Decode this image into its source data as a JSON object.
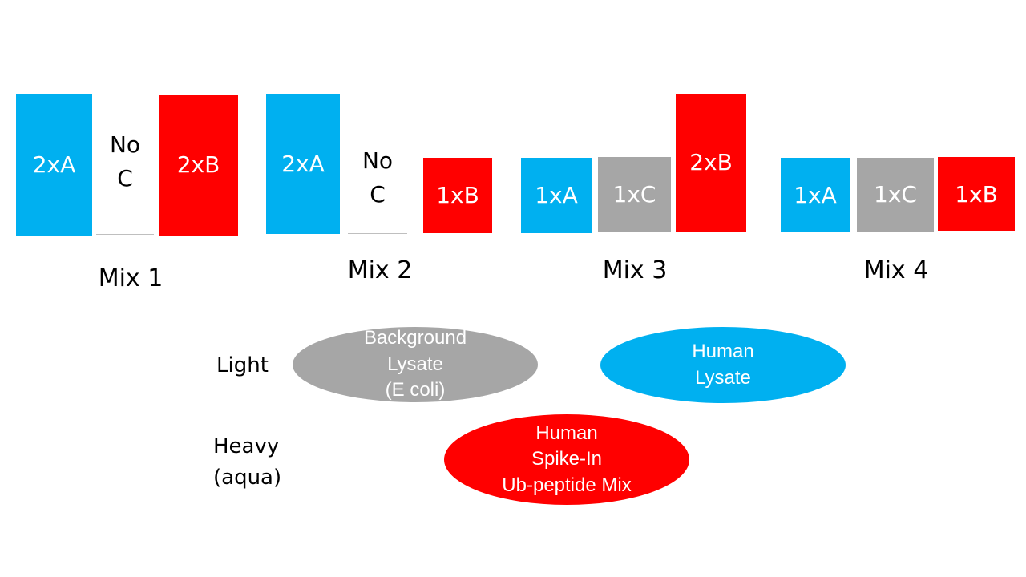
{
  "mixes": [
    {
      "label": "Mix 1",
      "blocks": [
        {
          "label": "2xA",
          "color": "#00b0f0"
        },
        {
          "label": "No\nC",
          "color": "none"
        },
        {
          "label": "2xB",
          "color": "#ff0000"
        }
      ]
    },
    {
      "label": "Mix 2",
      "blocks": [
        {
          "label": "2xA",
          "color": "#00b0f0"
        },
        {
          "label": "No\nC",
          "color": "none"
        },
        {
          "label": "1xB",
          "color": "#ff0000"
        }
      ]
    },
    {
      "label": "Mix 3",
      "blocks": [
        {
          "label": "1xA",
          "color": "#00b0f0"
        },
        {
          "label": "1xC",
          "color": "#a6a6a6"
        },
        {
          "label": "2xB",
          "color": "#ff0000"
        }
      ]
    },
    {
      "label": "Mix 4",
      "blocks": [
        {
          "label": "1xA",
          "color": "#00b0f0"
        },
        {
          "label": "1xC",
          "color": "#a6a6a6"
        },
        {
          "label": "1xB",
          "color": "#ff0000"
        }
      ]
    }
  ],
  "rows": {
    "light": "Light",
    "heavy": "Heavy\n(aqua)"
  },
  "ellipses": {
    "background": {
      "label": "Background\nLysate\n(E coli)",
      "color": "#a6a6a6"
    },
    "human_lysate": {
      "label": "Human\nLysate",
      "color": "#00b0f0"
    },
    "spike_in": {
      "label": "Human\nSpike-In\nUb-peptide Mix",
      "color": "#ff0000"
    }
  }
}
